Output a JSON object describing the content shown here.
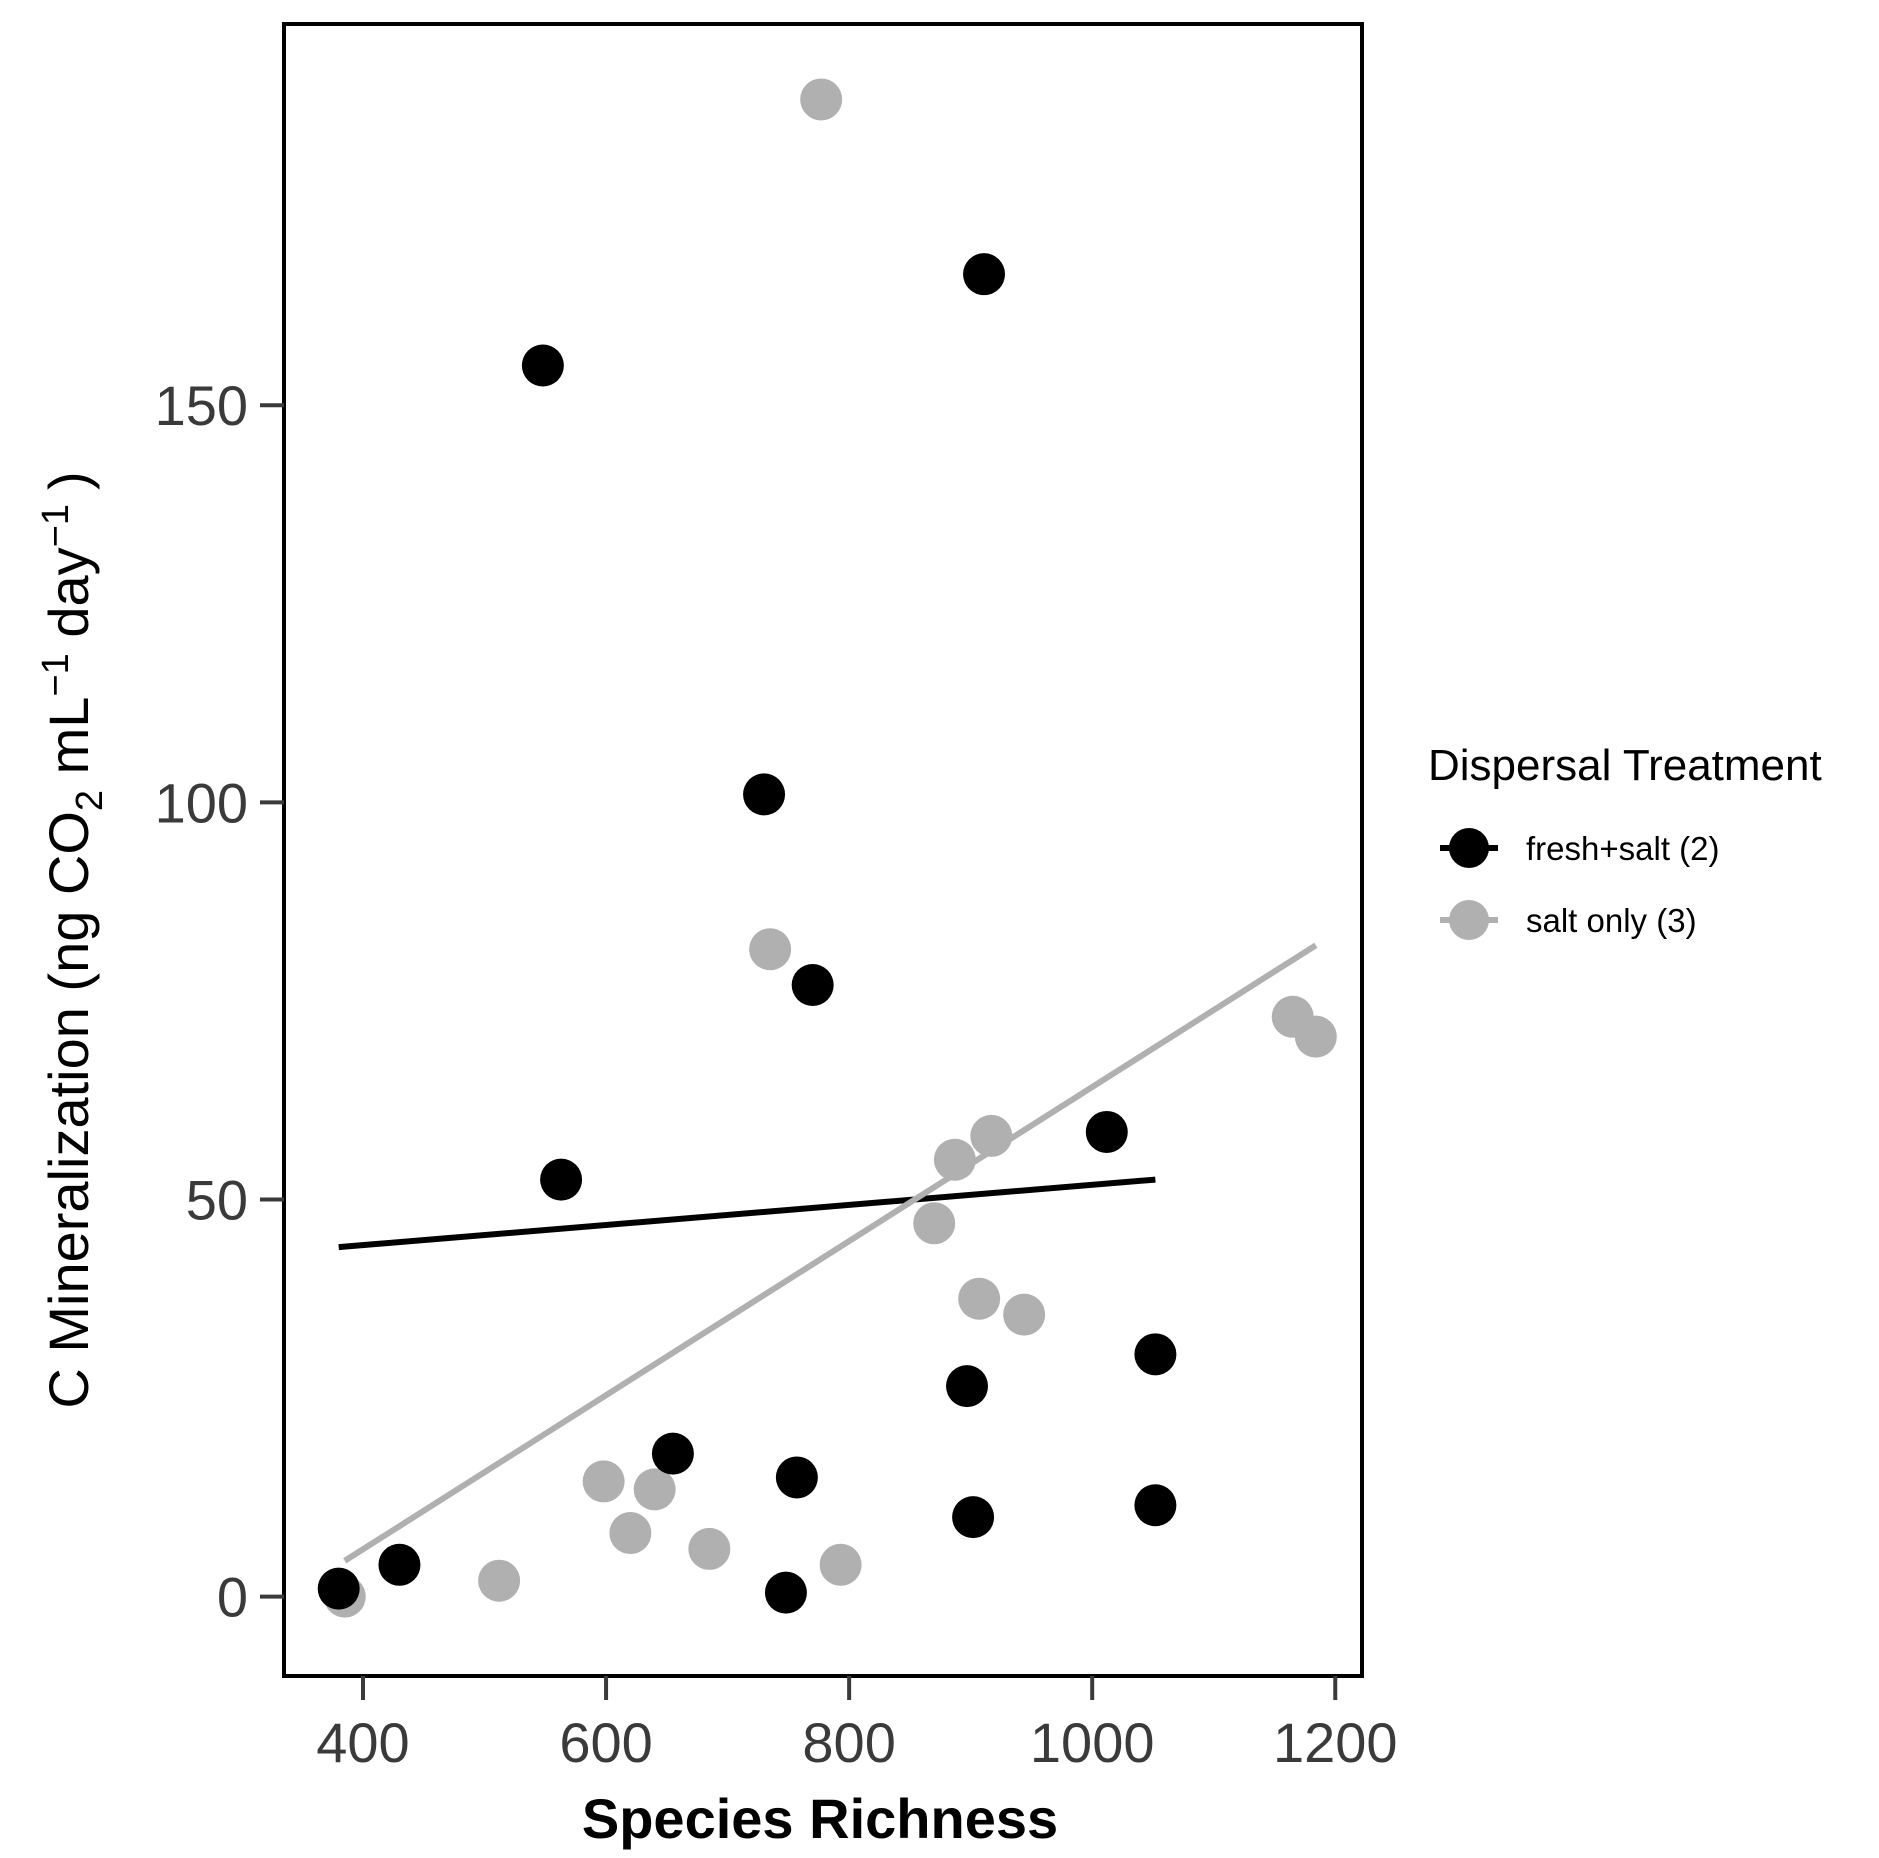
{
  "chart_data": {
    "type": "scatter",
    "xlabel": "Species Richness",
    "ylabel": {
      "prefix": "C Mineralization (ng CO",
      "co2_subscript": "2",
      "unit_ml": " mL",
      "exp_ml": "−1",
      "unit_day": " day",
      "exp_day": "−1",
      "close": ")"
    },
    "xlim": [
      335,
      1222
    ],
    "ylim": [
      -10,
      198
    ],
    "x_ticks": [
      400,
      600,
      800,
      1000,
      1200
    ],
    "y_ticks": [
      0,
      50,
      100,
      150
    ],
    "grid": false,
    "legend": {
      "title": "Dispersal Treatment",
      "position": "right",
      "entries": [
        "fresh+salt (2)",
        "salt only (3)"
      ]
    },
    "colors": {
      "fresh+salt (2)": "#000000",
      "salt only (3)": "#b0b0b0"
    },
    "series": [
      {
        "name": "fresh+salt (2)",
        "color": "#000000",
        "points": [
          [
            380,
            1
          ],
          [
            430,
            4
          ],
          [
            548,
            155
          ],
          [
            563,
            52.5
          ],
          [
            655,
            18
          ],
          [
            730,
            101
          ],
          [
            748,
            0.5
          ],
          [
            757,
            15
          ],
          [
            770,
            77
          ],
          [
            897,
            26.5
          ],
          [
            902,
            10
          ],
          [
            911,
            166.5
          ],
          [
            1012,
            58.5
          ],
          [
            1052,
            30.5
          ],
          [
            1052,
            11.5
          ]
        ],
        "trend": {
          "x": [
            380,
            1052
          ],
          "y": [
            44,
            52.5
          ]
        }
      },
      {
        "name": "salt only (3)",
        "color": "#b0b0b0",
        "points": [
          [
            385,
            0
          ],
          [
            512,
            2
          ],
          [
            598,
            14.5
          ],
          [
            620,
            8
          ],
          [
            640,
            13.5
          ],
          [
            685,
            6
          ],
          [
            735,
            81.5
          ],
          [
            777,
            188.5
          ],
          [
            793,
            4
          ],
          [
            870,
            47
          ],
          [
            887,
            55
          ],
          [
            907,
            37.5
          ],
          [
            917,
            58
          ],
          [
            944,
            35.5
          ],
          [
            1165,
            73
          ],
          [
            1184,
            70.5
          ]
        ],
        "trend": {
          "x": [
            385,
            1184
          ],
          "y": [
            4.5,
            82
          ]
        }
      }
    ]
  }
}
